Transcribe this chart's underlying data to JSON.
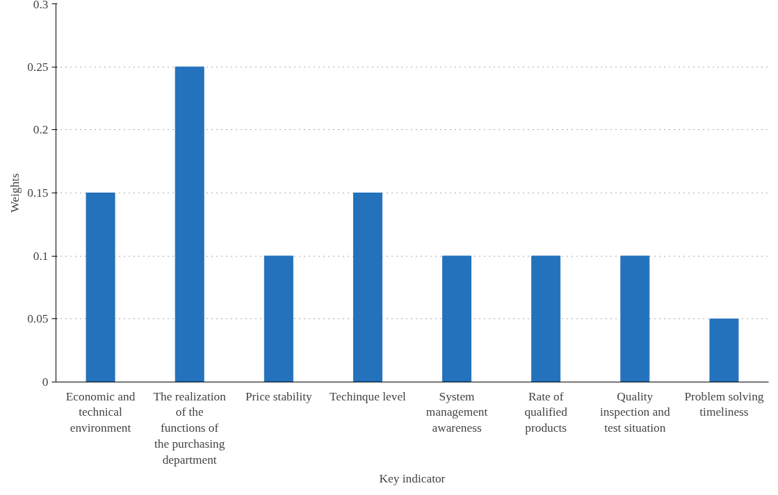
{
  "chart_data": {
    "type": "bar",
    "xlabel": "Key indicator",
    "ylabel": "Weights",
    "categories": [
      "Economic and technical environment",
      "The realization of the functions of the purchasing department",
      "Price stability",
      "Techinque level",
      "System management awareness",
      "Rate of qualified products",
      "Quality inspection and test situation",
      "Problem solving timeliness"
    ],
    "values": [
      0.15,
      0.25,
      0.1,
      0.15,
      0.1,
      0.1,
      0.1,
      0.05
    ],
    "color": "#2372bb",
    "ylim": [
      0,
      0.3
    ],
    "yticks": [
      0,
      0.05,
      0.1,
      0.15,
      0.2,
      0.25,
      0.3
    ],
    "grid": "y"
  }
}
